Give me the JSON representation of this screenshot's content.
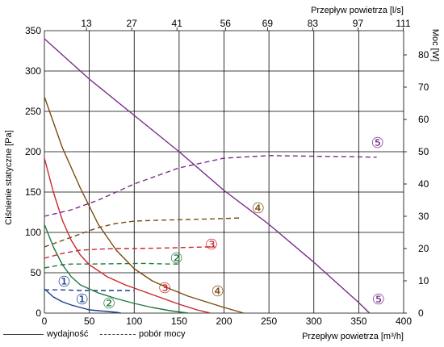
{
  "chart_data": {
    "type": "line",
    "ylabel": "Ciśnienie statyczne [Pa]",
    "y2label": "Moc [W]",
    "xlabel": "Przepływ powietrza [m³/h]",
    "x2label": "Przepływ powietrza [l/s]",
    "xlim": [
      0,
      400
    ],
    "ylim": [
      0,
      350
    ],
    "y2lim": [
      0,
      87.5
    ],
    "x_ticks": [
      "0",
      "50",
      "100",
      "150",
      "200",
      "250",
      "300",
      "350",
      "400"
    ],
    "y_ticks": [
      "0",
      "50",
      "100",
      "150",
      "200",
      "250",
      "300",
      "350"
    ],
    "y2_ticks": [
      "0",
      "10",
      "20",
      "30",
      "40",
      "50",
      "60",
      "70",
      "80"
    ],
    "x2_ticks": [
      "13",
      "27",
      "41",
      "56",
      "69",
      "83",
      "97",
      "111"
    ],
    "grid": true,
    "legend": [
      {
        "label": "wydajność",
        "style": "solid"
      },
      {
        "label": "pobór mocy",
        "style": "dashed"
      }
    ],
    "series": [
      {
        "marker": "①",
        "color": "#1a3c8c",
        "pressure": {
          "x": [
            0,
            10,
            20,
            30,
            40,
            50,
            60,
            70,
            80,
            85
          ],
          "y": [
            30,
            20,
            14,
            10,
            7,
            4,
            3,
            2,
            1,
            0
          ]
        },
        "power": {
          "x": [
            0,
            20,
            40,
            60,
            80,
            100
          ],
          "y": [
            7.2,
            7.2,
            7.0,
            7.0,
            7.0,
            7.0
          ]
        },
        "pressure_label": {
          "x": 42,
          "y": 17
        },
        "power_label": {
          "x": 22,
          "y": 39
        }
      },
      {
        "marker": "②",
        "color": "#1e7a3c",
        "pressure": {
          "x": [
            0,
            10,
            20,
            30,
            40,
            60,
            80,
            100,
            120,
            140,
            160
          ],
          "y": [
            110,
            82,
            60,
            45,
            35,
            25,
            18,
            12,
            7,
            3,
            0
          ]
        },
        "power": {
          "x": [
            0,
            20,
            30,
            50,
            80,
            110,
            140,
            150
          ],
          "y": [
            14,
            15,
            15.2,
            15.2,
            15.3,
            15.4,
            15.2,
            15.2
          ]
        },
        "pressure_label": {
          "x": 72,
          "y": 12
        },
        "power_label": {
          "x": 147,
          "y": 68
        }
      },
      {
        "marker": "③",
        "color": "#c8282a",
        "pressure": {
          "x": [
            0,
            10,
            20,
            30,
            40,
            50,
            70,
            90,
            110,
            130,
            150,
            170,
            185
          ],
          "y": [
            192,
            150,
            115,
            90,
            72,
            60,
            45,
            35,
            27,
            19,
            11,
            4,
            0
          ]
        },
        "power": {
          "x": [
            0,
            20,
            40,
            60,
            80,
            100,
            140,
            180,
            190
          ],
          "y": [
            17,
            18.5,
            19.5,
            19.8,
            20,
            20,
            20.2,
            20.5,
            20.5
          ]
        },
        "pressure_label": {
          "x": 134,
          "y": 31
        },
        "power_label": {
          "x": 186,
          "y": 85
        }
      },
      {
        "marker": "④",
        "color": "#7a4a10",
        "pressure": {
          "x": [
            0,
            20,
            40,
            60,
            80,
            100,
            120,
            140,
            160,
            180,
            200,
            222
          ],
          "y": [
            268,
            205,
            155,
            110,
            78,
            55,
            40,
            30,
            21,
            14,
            7,
            0
          ]
        },
        "power": {
          "x": [
            0,
            20,
            40,
            60,
            80,
            100,
            130,
            160,
            200,
            220
          ],
          "y": [
            20.5,
            22.5,
            24.5,
            26.5,
            27.8,
            28.5,
            28.8,
            29,
            29.3,
            29.5
          ]
        },
        "pressure_label": {
          "x": 193,
          "y": 27
        },
        "power_label": {
          "x": 238,
          "y": 130
        }
      },
      {
        "marker": "⑤",
        "color": "#7a2a8c",
        "pressure": {
          "x": [
            0,
            50,
            100,
            150,
            200,
            250,
            300,
            350,
            362
          ],
          "y": [
            340,
            290,
            245,
            200,
            152,
            110,
            63,
            13,
            0
          ]
        },
        "power": {
          "x": [
            0,
            30,
            60,
            100,
            150,
            200,
            250,
            300,
            350,
            370
          ],
          "y": [
            30,
            32,
            35,
            40,
            45,
            48,
            48.8,
            48.6,
            48.4,
            48.3
          ]
        },
        "pressure_label": {
          "x": 372,
          "y": 17
        },
        "power_label": {
          "x": 371,
          "y": 211
        }
      }
    ]
  }
}
